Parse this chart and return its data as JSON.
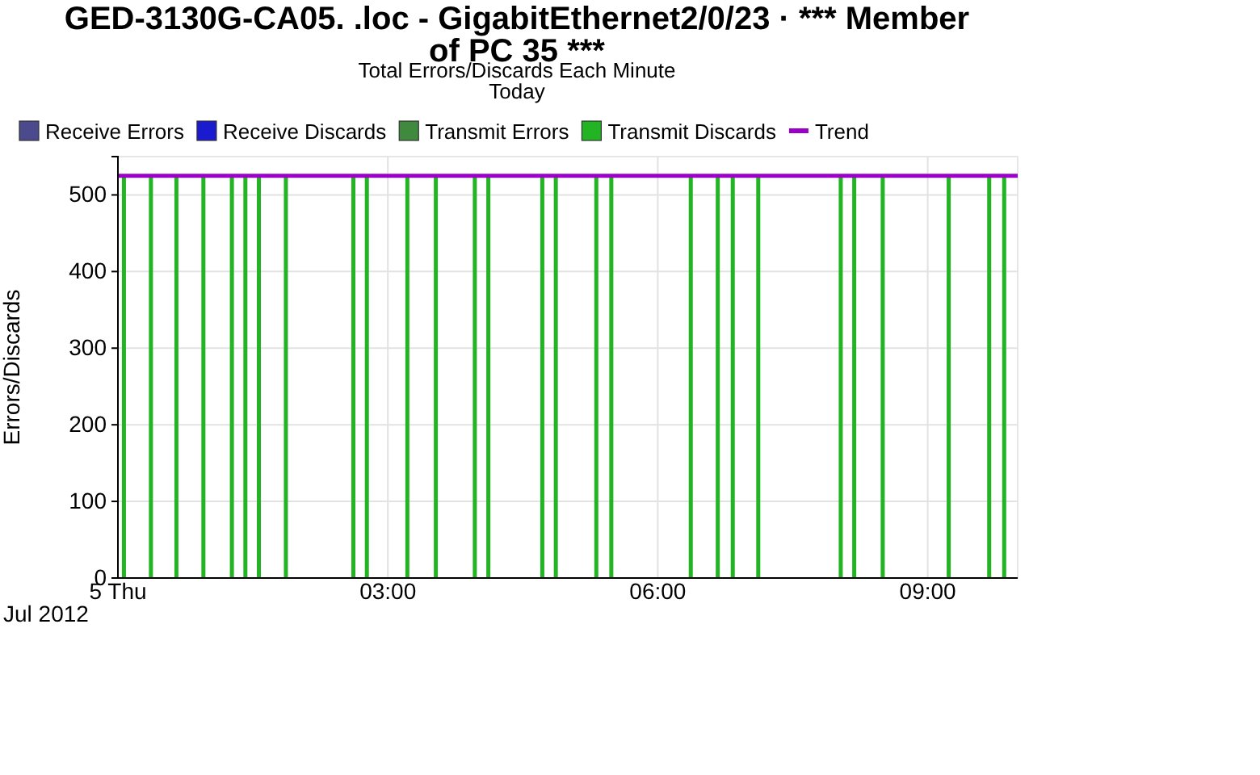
{
  "chart_data": {
    "type": "bar",
    "title": "GED-3130G-CA05. .loc - GigabitEthernet2/0/23 · *** Member of PC 35 ***",
    "subtitle": "Total Errors/Discards Each Minute\nToday",
    "ylabel": "Errors/Discards",
    "annotations": [
      "Jul 2012"
    ],
    "xlim": [
      "2012-07-05T00:00",
      "2012-07-05T10:00"
    ],
    "xticks": [
      {
        "value": "2012-07-05T00:00",
        "label": "5 Thu"
      },
      {
        "value": "2012-07-05T03:00",
        "label": "03:00"
      },
      {
        "value": "2012-07-05T06:00",
        "label": "06:00"
      },
      {
        "value": "2012-07-05T09:00",
        "label": "09:00"
      }
    ],
    "ylim": [
      0,
      550
    ],
    "yticks": [
      0,
      100,
      200,
      300,
      400,
      500
    ],
    "grid": true,
    "legend": "top",
    "series": [
      {
        "name": "Receive Errors",
        "color": "#4a4a8c"
      },
      {
        "name": "Receive Discards",
        "color": "#1a1ad0"
      },
      {
        "name": "Transmit Errors",
        "color": "#3f8a3f"
      },
      {
        "name": "Transmit Discards",
        "color": "#22b422",
        "x": [
          "2012-07-05T00:04",
          "2012-07-05T00:22",
          "2012-07-05T00:39",
          "2012-07-05T00:57",
          "2012-07-05T01:16",
          "2012-07-05T01:25",
          "2012-07-05T01:34",
          "2012-07-05T01:52",
          "2012-07-05T02:37",
          "2012-07-05T02:46",
          "2012-07-05T03:13",
          "2012-07-05T03:32",
          "2012-07-05T03:58",
          "2012-07-05T04:07",
          "2012-07-05T04:43",
          "2012-07-05T04:52",
          "2012-07-05T05:19",
          "2012-07-05T05:29",
          "2012-07-05T06:22",
          "2012-07-05T06:40",
          "2012-07-05T06:50",
          "2012-07-05T07:07",
          "2012-07-05T08:02",
          "2012-07-05T08:11",
          "2012-07-05T08:30",
          "2012-07-05T09:14",
          "2012-07-05T09:41",
          "2012-07-05T09:51"
        ],
        "values": [
          525,
          525,
          525,
          525,
          525,
          525,
          525,
          525,
          525,
          525,
          525,
          525,
          525,
          525,
          525,
          525,
          525,
          525,
          525,
          525,
          525,
          525,
          525,
          525,
          525,
          525,
          525,
          525
        ]
      },
      {
        "name": "Trend",
        "type": "line",
        "color": "#9a00c8",
        "x": [
          "2012-07-05T00:00",
          "2012-07-05T10:00"
        ],
        "values": [
          525,
          525
        ]
      }
    ]
  }
}
